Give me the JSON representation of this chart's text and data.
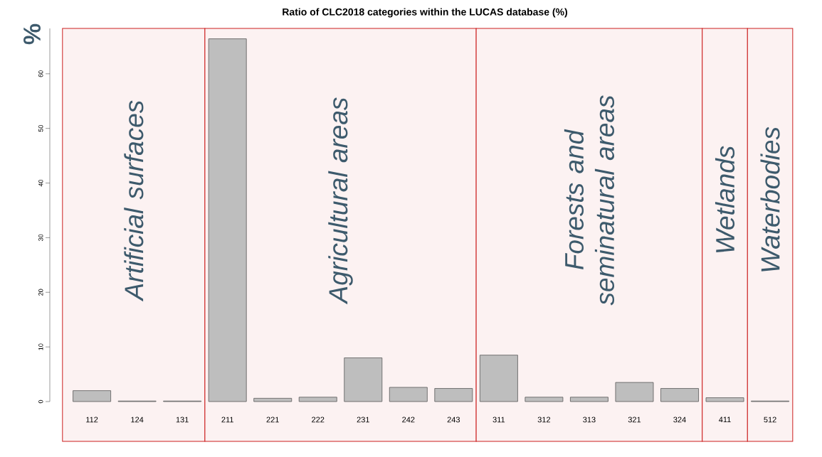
{
  "chart_data": {
    "type": "bar",
    "title": "Ratio of CLC2018 categories within the LUCAS database (%)",
    "ylabel": "%",
    "categories": [
      "112",
      "124",
      "131",
      "211",
      "221",
      "222",
      "231",
      "242",
      "243",
      "311",
      "312",
      "313",
      "321",
      "324",
      "411",
      "512"
    ],
    "values": [
      2.0,
      0.1,
      0.1,
      66.4,
      0.6,
      0.8,
      8.0,
      2.6,
      2.4,
      8.5,
      0.8,
      0.8,
      3.5,
      2.4,
      0.7,
      0.1
    ],
    "color": "#bebebe",
    "ylim": [
      0,
      68.3
    ],
    "yticks": [
      0,
      10,
      20,
      30,
      40,
      50,
      60
    ],
    "grid": false,
    "bands": [
      {
        "axis": "x",
        "from": "112",
        "to": "131",
        "label": "Artificial surfaces",
        "color": "#cc1f1f"
      },
      {
        "axis": "x",
        "from": "211",
        "to": "243",
        "label": "Agricultural areas",
        "color": "#cc1f1f"
      },
      {
        "axis": "x",
        "from": "311",
        "to": "324",
        "label": "Forests and seminatural areas",
        "color": "#cc1f1f"
      },
      {
        "axis": "x",
        "from": "411",
        "to": "411",
        "label": "Wetlands",
        "color": "#cc1f1f"
      },
      {
        "axis": "x",
        "from": "512",
        "to": "512",
        "label": "Waterbodies",
        "color": "#cc1f1f"
      }
    ]
  }
}
